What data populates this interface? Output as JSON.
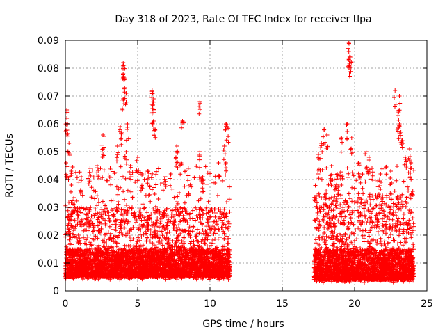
{
  "chart_data": {
    "type": "scatter",
    "title": "Day 318 of 2023, Rate Of TEC Index for receiver tlpa",
    "xlabel": "GPS time / hours",
    "ylabel": "ROTI / TECUs",
    "xlim": [
      0,
      25
    ],
    "ylim": [
      0,
      0.09
    ],
    "xticks": [
      "0",
      "5",
      "10",
      "15",
      "20",
      "25"
    ],
    "yticks": [
      "0",
      "0.01",
      "0.02",
      "0.03",
      "0.04",
      "0.05",
      "0.06",
      "0.07",
      "0.08",
      "0.09"
    ],
    "grid": true,
    "marker": "plus",
    "color": "#ff0000",
    "series": [
      {
        "segments": [
          {
            "x_range": [
              0.0,
              11.4
            ],
            "typical_range": [
              0.004,
              0.03
            ]
          },
          {
            "x_range": [
              17.2,
              24.1
            ],
            "typical_range": [
              0.003,
              0.035
            ]
          }
        ],
        "peaks": [
          {
            "x": 0.1,
            "y": 0.065
          },
          {
            "x": 0.1,
            "y": 0.062
          },
          {
            "x": 0.15,
            "y": 0.06
          },
          {
            "x": 0.25,
            "y": 0.053
          },
          {
            "x": 0.05,
            "y": 0.046
          },
          {
            "x": 0.4,
            "y": 0.043
          },
          {
            "x": 1.1,
            "y": 0.041
          },
          {
            "x": 1.7,
            "y": 0.044
          },
          {
            "x": 2.2,
            "y": 0.045
          },
          {
            "x": 2.6,
            "y": 0.056
          },
          {
            "x": 2.6,
            "y": 0.051
          },
          {
            "x": 3.1,
            "y": 0.044
          },
          {
            "x": 3.6,
            "y": 0.052
          },
          {
            "x": 3.8,
            "y": 0.059
          },
          {
            "x": 3.9,
            "y": 0.057
          },
          {
            "x": 4.0,
            "y": 0.082
          },
          {
            "x": 4.05,
            "y": 0.081
          },
          {
            "x": 4.0,
            "y": 0.078
          },
          {
            "x": 4.1,
            "y": 0.073
          },
          {
            "x": 4.2,
            "y": 0.071
          },
          {
            "x": 4.0,
            "y": 0.069
          },
          {
            "x": 4.3,
            "y": 0.06
          },
          {
            "x": 4.2,
            "y": 0.05
          },
          {
            "x": 4.5,
            "y": 0.045
          },
          {
            "x": 5.0,
            "y": 0.048
          },
          {
            "x": 5.3,
            "y": 0.042
          },
          {
            "x": 5.7,
            "y": 0.043
          },
          {
            "x": 6.0,
            "y": 0.072
          },
          {
            "x": 6.05,
            "y": 0.071
          },
          {
            "x": 6.1,
            "y": 0.069
          },
          {
            "x": 6.0,
            "y": 0.064
          },
          {
            "x": 6.1,
            "y": 0.061
          },
          {
            "x": 6.2,
            "y": 0.058
          },
          {
            "x": 6.9,
            "y": 0.041
          },
          {
            "x": 7.3,
            "y": 0.042
          },
          {
            "x": 7.7,
            "y": 0.052
          },
          {
            "x": 7.7,
            "y": 0.05
          },
          {
            "x": 8.0,
            "y": 0.046
          },
          {
            "x": 8.1,
            "y": 0.061
          },
          {
            "x": 8.5,
            "y": 0.044
          },
          {
            "x": 9.3,
            "y": 0.068
          },
          {
            "x": 9.3,
            "y": 0.05
          },
          {
            "x": 9.5,
            "y": 0.041
          },
          {
            "x": 10.6,
            "y": 0.046
          },
          {
            "x": 11.0,
            "y": 0.052
          },
          {
            "x": 11.1,
            "y": 0.06
          },
          {
            "x": 11.2,
            "y": 0.059
          },
          {
            "x": 11.1,
            "y": 0.046
          },
          {
            "x": 17.5,
            "y": 0.049
          },
          {
            "x": 17.7,
            "y": 0.053
          },
          {
            "x": 17.9,
            "y": 0.058
          },
          {
            "x": 18.1,
            "y": 0.056
          },
          {
            "x": 18.4,
            "y": 0.045
          },
          {
            "x": 18.8,
            "y": 0.042
          },
          {
            "x": 19.1,
            "y": 0.055
          },
          {
            "x": 19.6,
            "y": 0.089
          },
          {
            "x": 19.6,
            "y": 0.086
          },
          {
            "x": 19.7,
            "y": 0.084
          },
          {
            "x": 19.6,
            "y": 0.083
          },
          {
            "x": 19.5,
            "y": 0.06
          },
          {
            "x": 19.8,
            "y": 0.055
          },
          {
            "x": 20.3,
            "y": 0.046
          },
          {
            "x": 20.8,
            "y": 0.05
          },
          {
            "x": 21.0,
            "y": 0.048
          },
          {
            "x": 21.2,
            "y": 0.044
          },
          {
            "x": 21.8,
            "y": 0.042
          },
          {
            "x": 22.5,
            "y": 0.043
          },
          {
            "x": 22.8,
            "y": 0.072
          },
          {
            "x": 23.1,
            "y": 0.07
          },
          {
            "x": 23.0,
            "y": 0.063
          },
          {
            "x": 23.1,
            "y": 0.06
          },
          {
            "x": 23.2,
            "y": 0.057
          },
          {
            "x": 23.3,
            "y": 0.054
          },
          {
            "x": 23.5,
            "y": 0.048
          },
          {
            "x": 23.8,
            "y": 0.051
          },
          {
            "x": 23.9,
            "y": 0.046
          }
        ]
      }
    ]
  }
}
